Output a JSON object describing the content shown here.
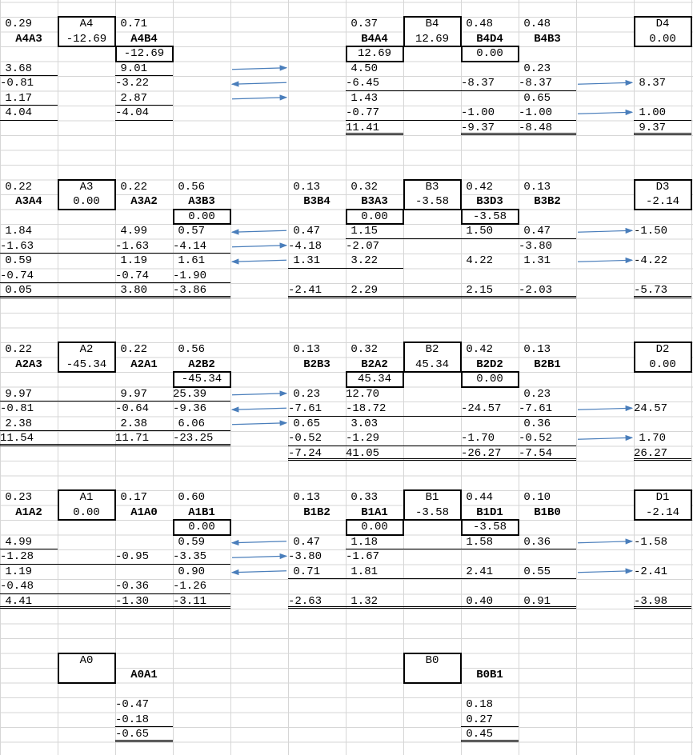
{
  "sheet": {
    "rows": [
      [],
      [
        "0.29",
        "A4",
        "0.71",
        null,
        null,
        null,
        "0.37",
        "B4",
        "0.48",
        "0.48",
        null,
        "D4"
      ],
      [
        "A4A3",
        "-12.69",
        "A4B4",
        null,
        null,
        null,
        "B4A4",
        "12.69",
        "B4D4",
        "B4B3",
        null,
        "0.00"
      ],
      [
        null,
        null,
        "-12.69",
        null,
        null,
        null,
        "12.69",
        null,
        "0.00"
      ],
      [
        "3.68",
        null,
        "9.01",
        null,
        null,
        null,
        "4.50",
        null,
        null,
        "0.23"
      ],
      [
        "-0.81",
        null,
        "-3.22",
        null,
        null,
        null,
        "-6.45",
        null,
        "-8.37",
        "-8.37",
        null,
        "8.37"
      ],
      [
        "1.17",
        null,
        "2.87",
        null,
        null,
        null,
        "1.43",
        null,
        null,
        "0.65"
      ],
      [
        "4.04",
        null,
        "-4.04",
        null,
        null,
        null,
        "-0.77",
        null,
        "-1.00",
        "-1.00",
        null,
        "1.00"
      ],
      [
        null,
        null,
        null,
        null,
        null,
        null,
        "11.41",
        null,
        "-9.37",
        "-8.48",
        null,
        "9.37"
      ],
      [],
      [],
      [],
      [
        "0.22",
        "A3",
        "0.22",
        "0.56",
        null,
        "0.13",
        "0.32",
        "B3",
        "0.42",
        "0.13",
        null,
        "D3"
      ],
      [
        "A3A4",
        "0.00",
        "A3A2",
        "A3B3",
        null,
        "B3B4",
        "B3A3",
        "-3.58",
        "B3D3",
        "B3B2",
        null,
        "-2.14"
      ],
      [
        null,
        null,
        null,
        "0.00",
        null,
        null,
        "0.00",
        null,
        "-3.58"
      ],
      [
        "1.84",
        null,
        "4.99",
        "0.57",
        null,
        "0.47",
        "1.15",
        null,
        "1.50",
        "0.47",
        null,
        "-1.50"
      ],
      [
        "-1.63",
        null,
        "-1.63",
        "-4.14",
        null,
        "-4.18",
        "-2.07",
        null,
        null,
        "-3.80"
      ],
      [
        "0.59",
        null,
        "1.19",
        "1.61",
        null,
        "1.31",
        "3.22",
        null,
        "4.22",
        "1.31",
        null,
        "-4.22"
      ],
      [
        "-0.74",
        null,
        "-0.74",
        "-1.90"
      ],
      [
        "0.05",
        null,
        "3.80",
        "-3.86",
        null,
        "-2.41",
        "2.29",
        null,
        "2.15",
        "-2.03",
        null,
        "-5.73"
      ],
      [],
      [],
      [],
      [
        "0.22",
        "A2",
        "0.22",
        "0.56",
        null,
        "0.13",
        "0.32",
        "B2",
        "0.42",
        "0.13",
        null,
        "D2"
      ],
      [
        "A2A3",
        "-45.34",
        "A2A1",
        "A2B2",
        null,
        "B2B3",
        "B2A2",
        "45.34",
        "B2D2",
        "B2B1",
        null,
        "0.00"
      ],
      [
        null,
        null,
        null,
        "-45.34",
        null,
        null,
        "45.34",
        null,
        "0.00"
      ],
      [
        "9.97",
        null,
        "9.97",
        "25.39",
        null,
        "0.23",
        "12.70",
        null,
        null,
        "0.23"
      ],
      [
        "-0.81",
        null,
        "-0.64",
        "-9.36",
        null,
        "-7.61",
        "-18.72",
        null,
        "-24.57",
        "-7.61",
        null,
        "24.57"
      ],
      [
        "2.38",
        null,
        "2.38",
        "6.06",
        null,
        "0.65",
        "3.03",
        null,
        null,
        "0.36"
      ],
      [
        "11.54",
        null,
        "11.71",
        "-23.25",
        null,
        "-0.52",
        "-1.29",
        null,
        "-1.70",
        "-0.52",
        null,
        "1.70"
      ],
      [
        null,
        null,
        null,
        null,
        null,
        "-7.24",
        "41.05",
        null,
        "-26.27",
        "-7.54",
        null,
        "26.27"
      ],
      [],
      [],
      [
        "0.23",
        "A1",
        "0.17",
        "0.60",
        null,
        "0.13",
        "0.33",
        "B1",
        "0.44",
        "0.10",
        null,
        "D1"
      ],
      [
        "A1A2",
        "0.00",
        "A1A0",
        "A1B1",
        null,
        "B1B2",
        "B1A1",
        "-3.58",
        "B1D1",
        "B1B0",
        null,
        "-2.14"
      ],
      [
        null,
        null,
        null,
        "0.00",
        null,
        null,
        "0.00",
        null,
        "-3.58"
      ],
      [
        "4.99",
        null,
        null,
        "0.59",
        null,
        "0.47",
        "1.18",
        null,
        "1.58",
        "0.36",
        null,
        "-1.58"
      ],
      [
        "-1.28",
        null,
        "-0.95",
        "-3.35",
        null,
        "-3.80",
        "-1.67"
      ],
      [
        "1.19",
        null,
        null,
        "0.90",
        null,
        "0.71",
        "1.81",
        null,
        "2.41",
        "0.55",
        null,
        "-2.41"
      ],
      [
        "-0.48",
        null,
        "-0.36",
        "-1.26"
      ],
      [
        "4.41",
        null,
        "-1.30",
        "-3.11",
        null,
        "-2.63",
        "1.32",
        null,
        "0.40",
        "0.91",
        null,
        "-3.98"
      ],
      [],
      [],
      [],
      [
        null,
        "A0",
        null,
        null,
        null,
        null,
        null,
        "B0"
      ],
      [
        null,
        null,
        "A0A1",
        null,
        null,
        null,
        null,
        null,
        "B0B1"
      ],
      [],
      [
        null,
        null,
        "-0.47",
        null,
        null,
        null,
        null,
        null,
        "0.18"
      ],
      [
        null,
        null,
        "-0.18",
        null,
        null,
        null,
        null,
        null,
        "0.27"
      ],
      [
        null,
        null,
        "-0.65",
        null,
        null,
        null,
        null,
        null,
        "0.45"
      ]
    ]
  }
}
